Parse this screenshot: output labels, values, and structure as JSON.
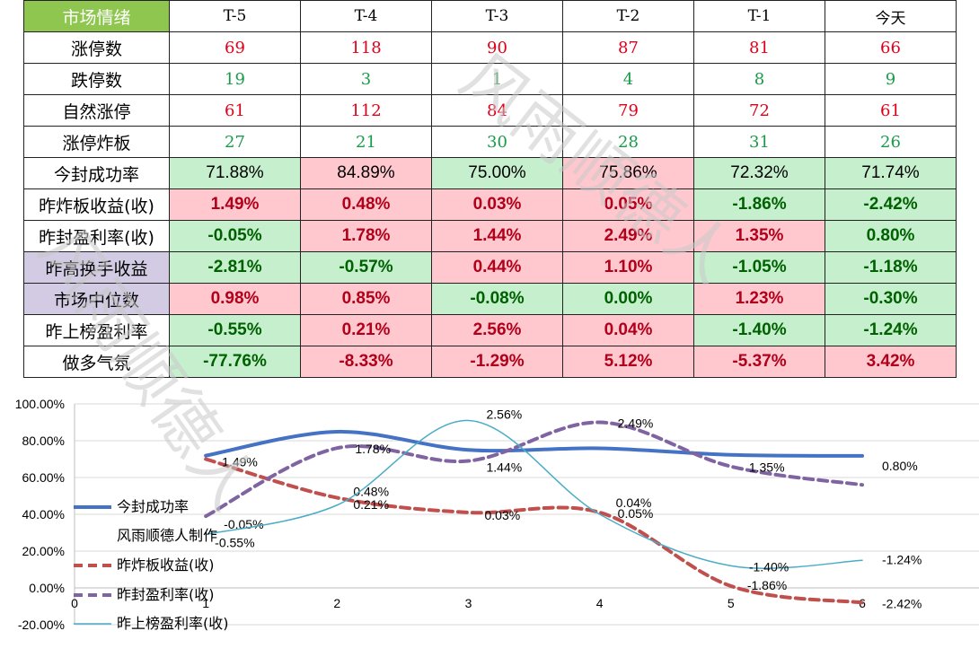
{
  "table": {
    "header": [
      "市场情绪",
      "T-5",
      "T-4",
      "T-3",
      "T-2",
      "T-1",
      "今天"
    ],
    "count_rows": [
      {
        "label": "涨停数",
        "values": [
          "69",
          "118",
          "90",
          "87",
          "81",
          "66"
        ],
        "color": "red"
      },
      {
        "label": "跌停数",
        "values": [
          "19",
          "3",
          "1",
          "4",
          "8",
          "9"
        ],
        "color": "grn"
      },
      {
        "label": "自然涨停",
        "values": [
          "61",
          "112",
          "84",
          "79",
          "72",
          "61"
        ],
        "color": "red"
      },
      {
        "label": "涨停炸板",
        "values": [
          "27",
          "21",
          "30",
          "28",
          "31",
          "26"
        ],
        "color": "grn"
      }
    ],
    "pct_rows": [
      {
        "label": "今封成功率",
        "label_bg": "none",
        "values": [
          "71.88%",
          "84.89%",
          "75.00%",
          "75.86%",
          "72.32%",
          "71.74%"
        ],
        "cells": [
          "g",
          "r",
          "g",
          "r",
          "g",
          "g"
        ],
        "bold": false
      },
      {
        "label": "昨炸板收益(收)",
        "label_bg": "none",
        "values": [
          "1.49%",
          "0.48%",
          "0.03%",
          "0.05%",
          "-1.86%",
          "-2.42%"
        ],
        "cells": [
          "r",
          "r",
          "r",
          "r",
          "g",
          "g"
        ],
        "bold": true
      },
      {
        "label": "昨封盈利率(收)",
        "label_bg": "none",
        "values": [
          "-0.05%",
          "1.78%",
          "1.44%",
          "2.49%",
          "1.35%",
          "0.80%"
        ],
        "cells": [
          "g",
          "r",
          "r",
          "r",
          "r",
          "g"
        ],
        "bold": true
      },
      {
        "label": "昨高换手收益",
        "label_bg": "purple",
        "values": [
          "-2.81%",
          "-0.57%",
          "0.44%",
          "1.10%",
          "-1.05%",
          "-1.18%"
        ],
        "cells": [
          "g",
          "g",
          "r",
          "r",
          "g",
          "g"
        ],
        "bold": true
      },
      {
        "label": "市场中位数",
        "label_bg": "purple",
        "values": [
          "0.98%",
          "0.85%",
          "-0.08%",
          "0.00%",
          "1.23%",
          "-0.30%"
        ],
        "cells": [
          "r",
          "r",
          "g",
          "g",
          "r",
          "g"
        ],
        "bold": true
      },
      {
        "label": "昨上榜盈利率",
        "label_bg": "none",
        "values": [
          "-0.55%",
          "0.21%",
          "2.56%",
          "0.04%",
          "-1.40%",
          "-1.24%"
        ],
        "cells": [
          "g",
          "r",
          "r",
          "r",
          "g",
          "g"
        ],
        "bold": true
      },
      {
        "label": "做多气氛",
        "label_bg": "none",
        "values": [
          "-77.76%",
          "-8.33%",
          "-1.29%",
          "5.12%",
          "-5.37%",
          "3.42%"
        ],
        "cells": [
          "g",
          "r",
          "r",
          "r",
          "r",
          "r"
        ],
        "bold": true
      }
    ]
  },
  "watermark": "风雨顺德人",
  "chart_data": {
    "type": "line",
    "x": [
      1,
      2,
      3,
      4,
      5,
      6
    ],
    "xlim": [
      0,
      6
    ],
    "ylim": [
      -20,
      100
    ],
    "y_ticks": [
      "100.00%",
      "80.00%",
      "60.00%",
      "40.00%",
      "20.00%",
      "0.00%",
      "-20.00%"
    ],
    "x_ticks": [
      "0",
      "1",
      "2",
      "3",
      "4",
      "5",
      "6"
    ],
    "series": [
      {
        "name": "今封成功率",
        "values": [
          71.88,
          84.89,
          75.0,
          75.86,
          72.32,
          71.74
        ],
        "color": "#4472c4",
        "style": "solid-thick",
        "labels": []
      },
      {
        "name": "昨炸板收益(收)",
        "values": [
          70,
          49,
          41,
          41,
          1,
          -8
        ],
        "color": "#c0504d",
        "style": "dashed",
        "labels": [
          "1.49%",
          "0.48%",
          "0.03%",
          "0.05%",
          "-1.86%",
          "-2.42%"
        ]
      },
      {
        "name": "昨封盈利率(收)",
        "values": [
          39,
          76,
          69,
          90,
          66,
          56
        ],
        "color": "#8064a2",
        "style": "dashed",
        "labels": [
          "-0.05%",
          "1.78%",
          "1.44%",
          "2.49%",
          "1.35%",
          "0.80%"
        ]
      },
      {
        "name": "昨上榜盈利率(收)",
        "values": [
          29,
          45,
          91,
          40,
          12,
          15
        ],
        "color": "#4bacc6",
        "style": "solid-thin",
        "labels": [
          "-0.55%",
          "0.21%",
          "2.56%",
          "0.04%",
          "-1.40%",
          "-1.24%"
        ]
      }
    ],
    "legend_note": "风雨顺德人制作",
    "legend_position": "left"
  }
}
